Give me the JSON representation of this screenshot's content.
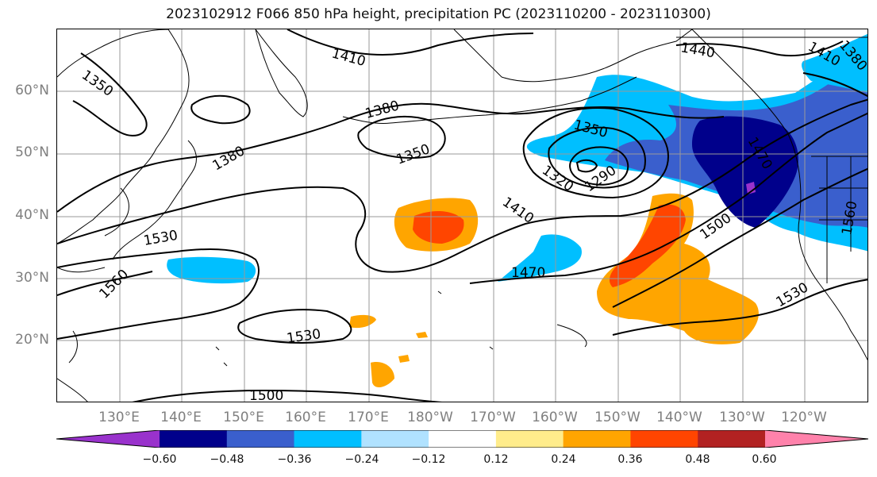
{
  "title": "2023102912 F066 850 hPa height, precipitation PC (2023110200 - 2023110300)",
  "lat_labels": [
    "60°N",
    "50°N",
    "40°N",
    "30°N",
    "20°N"
  ],
  "lon_labels": [
    "130°E",
    "140°E",
    "150°E",
    "160°E",
    "170°E",
    "180°W",
    "170°W",
    "160°W",
    "150°W",
    "140°W",
    "130°W",
    "120°W"
  ],
  "contour_labels": [
    "1350",
    "1410",
    "1440",
    "1410",
    "1380",
    "1380",
    "1350",
    "1350",
    "1320",
    "1290",
    "1410",
    "1470",
    "1500",
    "1530",
    "1530",
    "1560",
    "1530",
    "1500",
    "1560",
    "1470",
    "1380"
  ],
  "colorbar": {
    "ticks": [
      "−0.60",
      "−0.48",
      "−0.36",
      "−0.24",
      "−0.12",
      "0.12",
      "0.24",
      "0.36",
      "0.48",
      "0.60"
    ],
    "colors": [
      "#9932cc",
      "#00008b",
      "#3a5fcd",
      "#00bfff",
      "#b0e2ff",
      "#ffffff",
      "#ffec8b",
      "#ffa500",
      "#ff4500",
      "#b22222",
      "#ff82ab"
    ]
  }
}
